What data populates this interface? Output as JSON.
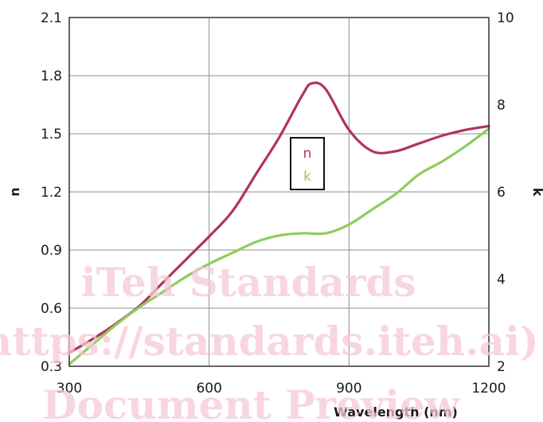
{
  "chart_data": {
    "type": "line",
    "xlabel": "Wavelength (nm)",
    "ylabel": "n",
    "y2label": "k",
    "xlim": [
      300,
      1200
    ],
    "ylim": [
      0.3,
      2.1
    ],
    "y2lim": [
      2,
      10
    ],
    "x_ticks": [
      "300",
      "600",
      "900",
      "1200"
    ],
    "y_ticks": [
      "0.3",
      "0.6",
      "0.9",
      "1.2",
      "1.5",
      "1.8",
      "2.1"
    ],
    "y2_ticks": [
      "2",
      "4",
      "6",
      "8",
      "10"
    ],
    "grid": true,
    "legend": "center",
    "series": [
      {
        "name": "n",
        "axis": "left",
        "color": "#b0345c",
        "x": [
          300,
          350,
          400,
          450,
          500,
          550,
          600,
          650,
          700,
          750,
          800,
          820,
          850,
          900,
          950,
          1000,
          1050,
          1100,
          1150,
          1200
        ],
        "values": [
          0.37,
          0.44,
          0.52,
          0.61,
          0.73,
          0.85,
          0.97,
          1.1,
          1.29,
          1.48,
          1.7,
          1.76,
          1.73,
          1.52,
          1.41,
          1.41,
          1.45,
          1.49,
          1.52,
          1.54
        ]
      },
      {
        "name": "k",
        "axis": "right",
        "color": "#8fcc5c",
        "x": [
          300,
          350,
          400,
          450,
          500,
          550,
          600,
          650,
          700,
          750,
          800,
          850,
          900,
          950,
          1000,
          1050,
          1100,
          1150,
          1200
        ],
        "values": [
          2.05,
          2.5,
          2.95,
          3.35,
          3.7,
          4.05,
          4.35,
          4.6,
          4.85,
          5.0,
          5.05,
          5.05,
          5.25,
          5.6,
          5.95,
          6.4,
          6.7,
          7.05,
          7.45
        ]
      }
    ]
  },
  "legend": {
    "n_label": "n",
    "k_label": "k"
  },
  "watermark": {
    "line1": "iTeh Standards",
    "line2": "(https://standards.iteh.ai)",
    "line3": "Document Preview"
  }
}
